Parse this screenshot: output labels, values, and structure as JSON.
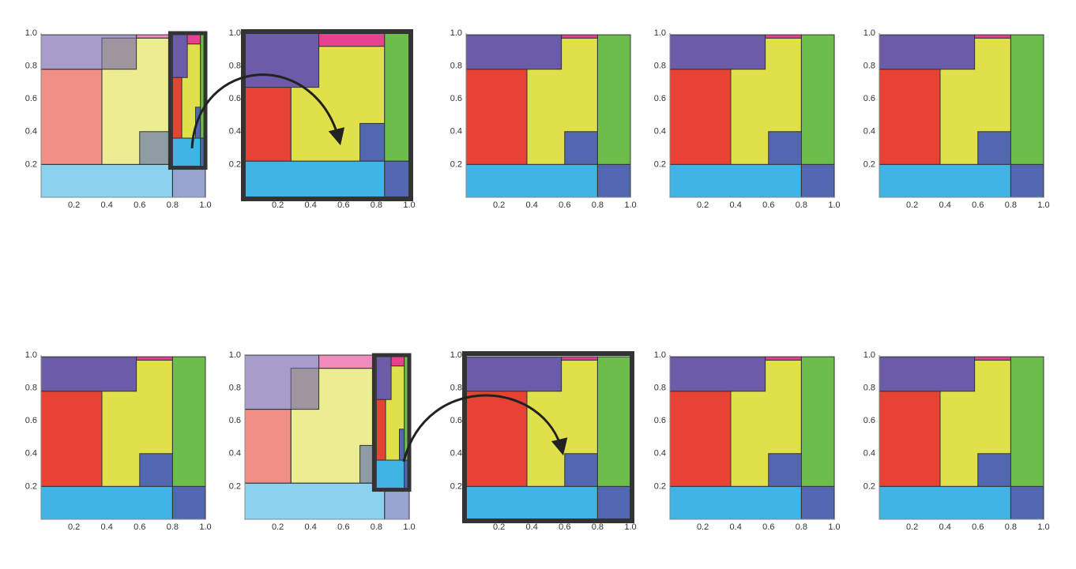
{
  "axis": {
    "ticks": [
      {
        "value": 0.2,
        "label": "0.2"
      },
      {
        "value": 0.4,
        "label": "0.4"
      },
      {
        "value": 0.6,
        "label": "0.6"
      },
      {
        "value": 0.8,
        "label": "0.8"
      },
      {
        "value": 1,
        "label": "1.0"
      }
    ]
  }
}
